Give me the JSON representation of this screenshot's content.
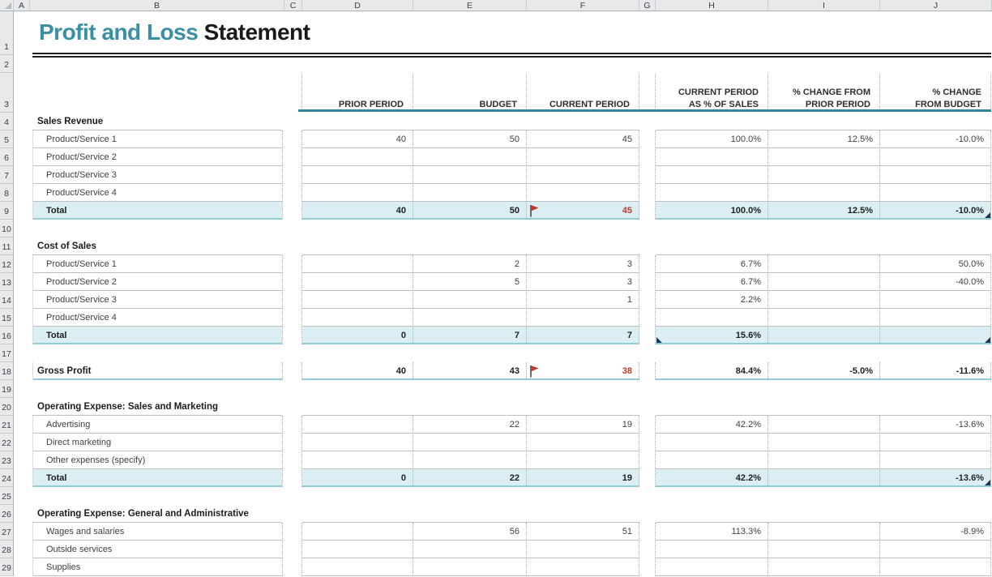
{
  "title": {
    "accent": "Profit and Loss",
    "rest": " Statement"
  },
  "colors": {
    "title_teal": "#3A8FA3",
    "accent_teal": "#31849B",
    "total_fill": "#DAEEF3",
    "total_border": "#92CDDC",
    "grid_gray": "#BFBFBF",
    "dotted_gray": "#ABABAB",
    "alert_red": "#C0392B",
    "marker_navy": "#17375E"
  },
  "chrome": {
    "column_letters": [
      "A",
      "B",
      "C",
      "D",
      "E",
      "F",
      "G",
      "H",
      "I",
      "J"
    ],
    "row_numbers": [
      1,
      2,
      3,
      4,
      5,
      6,
      7,
      8,
      9,
      10,
      11,
      12,
      13,
      14,
      15,
      16,
      17,
      18,
      19,
      20,
      21,
      22,
      23,
      24,
      25,
      26,
      27,
      28,
      29
    ]
  },
  "table_header": {
    "columns": [
      {
        "key": "prior-period",
        "lines": [
          "PRIOR PERIOD"
        ]
      },
      {
        "key": "budget",
        "lines": [
          "BUDGET"
        ]
      },
      {
        "key": "current-period",
        "lines": [
          "CURRENT PERIOD"
        ]
      },
      {
        "key": "pct-of-sales",
        "lines": [
          "CURRENT PERIOD",
          "AS % OF SALES"
        ]
      },
      {
        "key": "chg-from-prior",
        "lines": [
          "% CHANGE FROM",
          "PRIOR PERIOD"
        ]
      },
      {
        "key": "chg-from-budget",
        "lines": [
          "% CHANGE",
          "FROM BUDGET"
        ]
      }
    ]
  },
  "grid": [
    {
      "row": 4,
      "type": "section",
      "label": "Sales Revenue"
    },
    {
      "row": 5,
      "type": "item",
      "label": "Product/Service 1",
      "values": [
        "40",
        "50",
        "45",
        "100.0%",
        "12.5%",
        "-10.0%"
      ]
    },
    {
      "row": 6,
      "type": "item",
      "label": "Product/Service 2",
      "values": [
        "",
        "",
        "",
        "",
        "",
        ""
      ]
    },
    {
      "row": 7,
      "type": "item",
      "label": "Product/Service 3",
      "values": [
        "",
        "",
        "",
        "",
        "",
        ""
      ]
    },
    {
      "row": 8,
      "type": "item",
      "label": "Product/Service 4",
      "values": [
        "",
        "",
        "",
        "",
        "",
        ""
      ]
    },
    {
      "row": 9,
      "type": "total",
      "label": "Total",
      "values": [
        "40",
        "50",
        "45",
        "100.0%",
        "12.5%",
        "-10.0%"
      ],
      "flag": true,
      "red_current": true,
      "markers": [
        "j-br"
      ]
    },
    {
      "row": 10,
      "type": "gap"
    },
    {
      "row": 11,
      "type": "section",
      "label": "Cost of Sales"
    },
    {
      "row": 12,
      "type": "item",
      "label": "Product/Service 1",
      "values": [
        "",
        "2",
        "3",
        "6.7%",
        "",
        "50.0%"
      ]
    },
    {
      "row": 13,
      "type": "item",
      "label": "Product/Service 2",
      "values": [
        "",
        "5",
        "3",
        "6.7%",
        "",
        "-40.0%"
      ]
    },
    {
      "row": 14,
      "type": "item",
      "label": "Product/Service 3",
      "values": [
        "",
        "",
        "1",
        "2.2%",
        "",
        ""
      ]
    },
    {
      "row": 15,
      "type": "item",
      "label": "Product/Service 4",
      "values": [
        "",
        "",
        "",
        "",
        "",
        ""
      ]
    },
    {
      "row": 16,
      "type": "total",
      "label": "Total",
      "values": [
        "0",
        "7",
        "7",
        "15.6%",
        "",
        ""
      ],
      "markers": [
        "h-bl",
        "j-br"
      ]
    },
    {
      "row": 17,
      "type": "gap"
    },
    {
      "row": 18,
      "type": "grand",
      "label": "Gross Profit",
      "values": [
        "40",
        "43",
        "38",
        "84.4%",
        "-5.0%",
        "-11.6%"
      ],
      "flag": true,
      "red_current": true
    },
    {
      "row": 19,
      "type": "gap"
    },
    {
      "row": 20,
      "type": "section",
      "label": "Operating Expense: Sales and Marketing"
    },
    {
      "row": 21,
      "type": "item",
      "label": "Advertising",
      "values": [
        "",
        "22",
        "19",
        "42.2%",
        "",
        "-13.6%"
      ]
    },
    {
      "row": 22,
      "type": "item",
      "label": "Direct marketing",
      "values": [
        "",
        "",
        "",
        "",
        "",
        ""
      ]
    },
    {
      "row": 23,
      "type": "item",
      "label": "Other expenses (specify)",
      "values": [
        "",
        "",
        "",
        "",
        "",
        ""
      ]
    },
    {
      "row": 24,
      "type": "total",
      "label": "Total",
      "values": [
        "0",
        "22",
        "19",
        "42.2%",
        "",
        "-13.6%"
      ],
      "markers": [
        "j-br"
      ]
    },
    {
      "row": 25,
      "type": "gap"
    },
    {
      "row": 26,
      "type": "section",
      "label": "Operating Expense: General and Administrative"
    },
    {
      "row": 27,
      "type": "item",
      "label": "Wages and salaries",
      "values": [
        "",
        "56",
        "51",
        "113.3%",
        "",
        "-8.9%"
      ]
    },
    {
      "row": 28,
      "type": "item",
      "label": "Outside services",
      "values": [
        "",
        "",
        "",
        "",
        "",
        ""
      ]
    },
    {
      "row": 29,
      "type": "item",
      "label": "Supplies",
      "values": [
        "",
        "",
        "",
        "",
        "",
        ""
      ]
    }
  ]
}
